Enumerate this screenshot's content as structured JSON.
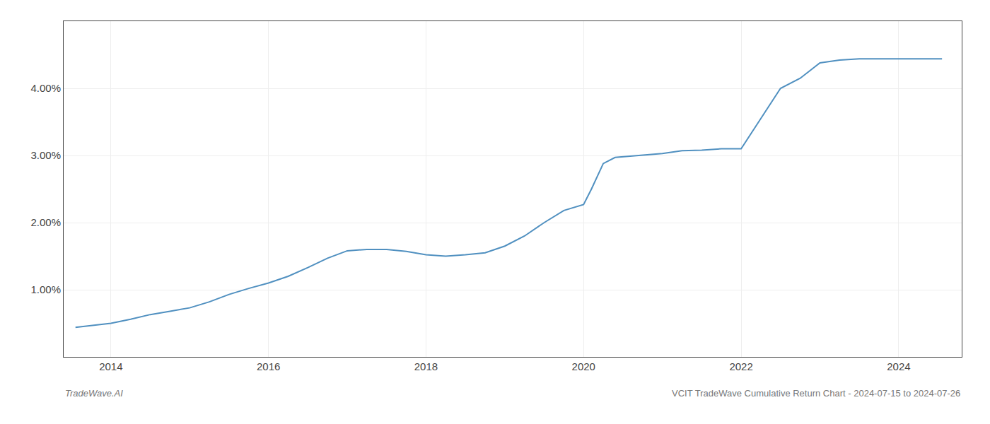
{
  "chart_data": {
    "type": "line",
    "annotations": [
      "TradeWave.AI",
      "VCIT TradeWave Cumulative Return Chart - 2024-07-15 to 2024-07-26"
    ],
    "color": "#5090c0",
    "x": [
      2013.55,
      2014.0,
      2014.25,
      2014.5,
      2014.75,
      2015.0,
      2015.25,
      2015.5,
      2015.75,
      2016.0,
      2016.25,
      2016.5,
      2016.75,
      2017.0,
      2017.25,
      2017.5,
      2017.75,
      2018.0,
      2018.25,
      2018.5,
      2018.75,
      2019.0,
      2019.25,
      2019.5,
      2019.75,
      2020.0,
      2020.1,
      2020.25,
      2020.4,
      2020.5,
      2020.6,
      2020.75,
      2021.0,
      2021.25,
      2021.5,
      2021.75,
      2022.0,
      2022.25,
      2022.5,
      2022.75,
      2023.0,
      2023.25,
      2023.5,
      2023.75,
      2024.0,
      2024.3,
      2024.55
    ],
    "values": [
      0.44,
      0.5,
      0.56,
      0.63,
      0.68,
      0.73,
      0.82,
      0.93,
      1.02,
      1.1,
      1.2,
      1.33,
      1.47,
      1.58,
      1.6,
      1.6,
      1.57,
      1.52,
      1.5,
      1.52,
      1.55,
      1.65,
      1.8,
      2.0,
      2.18,
      2.27,
      2.5,
      2.88,
      2.97,
      2.98,
      2.99,
      3.0,
      3.03,
      3.07,
      3.08,
      3.1,
      3.1,
      3.55,
      4.0,
      4.15,
      4.38,
      4.42,
      4.44,
      4.44,
      4.44,
      4.44,
      4.44
    ],
    "xlim": [
      2013.4,
      2024.8
    ],
    "ylim": [
      0.0,
      5.0
    ],
    "xticks": [
      2014,
      2016,
      2018,
      2020,
      2022,
      2024
    ],
    "yticks": [
      {
        "value": 1.0,
        "label": "1.00%"
      },
      {
        "value": 2.0,
        "label": "2.00%"
      },
      {
        "value": 3.0,
        "label": "3.00%"
      },
      {
        "value": 4.0,
        "label": "4.00%"
      }
    ],
    "grid": true
  }
}
